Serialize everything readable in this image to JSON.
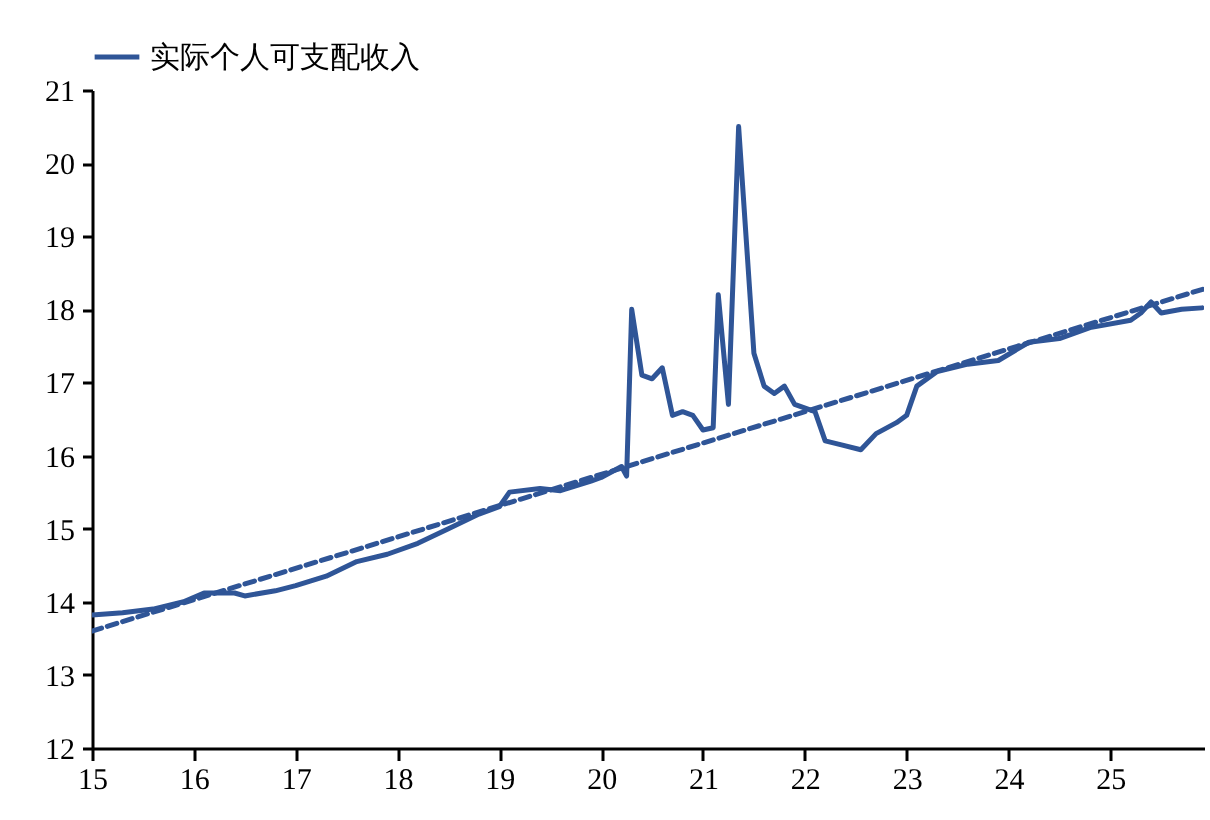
{
  "chart_data": {
    "type": "line",
    "legend": "top",
    "grid": false,
    "xlim": [
      15,
      25.92
    ],
    "xticks": [
      15,
      16,
      17,
      18,
      19,
      20,
      21,
      22,
      23,
      24,
      25
    ],
    "ylim": [
      12,
      21
    ],
    "yticks": [
      12,
      13,
      14,
      15,
      16,
      17,
      18,
      19,
      20,
      21
    ],
    "series": [
      {
        "name": "实际个人可支配收入",
        "color": "#2f5597",
        "line_style": "solid",
        "x": [
          15.0,
          15.3,
          15.6,
          15.9,
          16.1,
          16.4,
          16.5,
          16.8,
          17.0,
          17.3,
          17.6,
          17.9,
          18.2,
          18.5,
          18.8,
          19.0,
          19.1,
          19.4,
          19.6,
          19.9,
          20.0,
          20.2,
          20.25,
          20.3,
          20.4,
          20.5,
          20.6,
          20.7,
          20.8,
          20.9,
          21.0,
          21.1,
          21.15,
          21.25,
          21.35,
          21.5,
          21.6,
          21.7,
          21.8,
          21.9,
          22.1,
          22.2,
          22.35,
          22.55,
          22.7,
          22.9,
          23.0,
          23.1,
          23.3,
          23.6,
          23.9,
          24.2,
          24.5,
          24.8,
          25.2,
          25.3,
          25.4,
          25.5,
          25.7,
          25.9
        ],
        "values": [
          13.82,
          13.85,
          13.9,
          14.0,
          14.12,
          14.12,
          14.08,
          14.15,
          14.22,
          14.35,
          14.55,
          14.65,
          14.8,
          15.0,
          15.2,
          15.3,
          15.5,
          15.55,
          15.52,
          15.65,
          15.7,
          15.85,
          15.72,
          18.0,
          17.1,
          17.05,
          17.2,
          16.55,
          16.6,
          16.55,
          16.35,
          16.38,
          18.2,
          16.7,
          20.5,
          17.4,
          16.95,
          16.85,
          16.95,
          16.7,
          16.6,
          16.2,
          16.15,
          16.08,
          16.3,
          16.45,
          16.55,
          16.95,
          17.15,
          17.25,
          17.3,
          17.55,
          17.6,
          17.75,
          17.85,
          17.95,
          18.1,
          17.95,
          18.0,
          18.02
        ]
      },
      {
        "type": "line",
        "color": "#2f5597",
        "line_style": "dashed",
        "x": [
          15,
          25.92
        ],
        "values": [
          13.6,
          18.28
        ]
      }
    ]
  }
}
